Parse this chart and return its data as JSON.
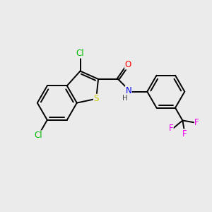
{
  "background_color": "#ebebeb",
  "bond_color": "#000000",
  "atom_colors": {
    "Cl": "#00bb00",
    "S": "#cccc00",
    "O": "#ff0000",
    "N": "#0000ee",
    "F": "#ee00ee",
    "C": "#000000",
    "H": "#444444"
  },
  "lw": 1.4,
  "fs": 8.5
}
